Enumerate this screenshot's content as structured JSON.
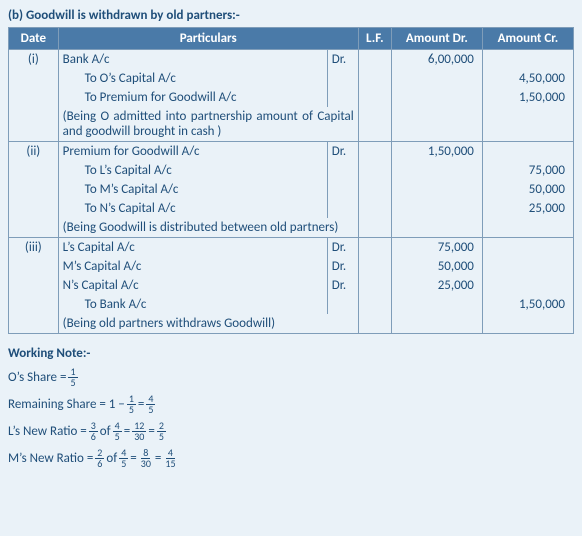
{
  "heading": "(b)  Goodwill is withdrawn by old partners:-",
  "columns": {
    "date": "Date",
    "particulars": "Particulars",
    "lf": "L.F.",
    "amount_dr": "Amount Dr.",
    "amount_cr": "Amount Cr."
  },
  "style": {
    "header_bg": "#4a7aa8",
    "header_fg": "#ffffff",
    "border": "#7f9db9",
    "body_bg": "#eaf2f8",
    "text_color": "#1f4e79",
    "font_size": 13
  },
  "entries": [
    {
      "ref": "(i)",
      "dr_lines": [
        {
          "text": "Bank A/c",
          "dr": "Dr.",
          "amt_dr": "6,00,000"
        }
      ],
      "cr_lines": [
        {
          "text": "To O’s Capital A/c",
          "amt_cr": "4,50,000"
        },
        {
          "text": "To Premium for Goodwill A/c",
          "amt_cr": "1,50,000"
        }
      ],
      "narration": "(Being O admitted into partnership amount of Capital and goodwill brought in cash )"
    },
    {
      "ref": "(ii)",
      "dr_lines": [
        {
          "text": "Premium for Goodwill A/c",
          "dr": "Dr.",
          "amt_dr": "1,50,000"
        }
      ],
      "cr_lines": [
        {
          "text": "To L’s Capital A/c",
          "amt_cr": "75,000"
        },
        {
          "text": "To M’s Capital A/c",
          "amt_cr": "50,000"
        },
        {
          "text": "To N’s Capital A/c",
          "amt_cr": "25,000"
        }
      ],
      "narration": "(Being Goodwill is distributed between old partners)"
    },
    {
      "ref": "(iii)",
      "dr_lines": [
        {
          "text": "L’s Capital A/c",
          "dr": "Dr.",
          "amt_dr": "75,000"
        },
        {
          "text": "M’s Capital A/c",
          "dr": "Dr.",
          "amt_dr": "50,000"
        },
        {
          "text": "N’s Capital A/c",
          "dr": "Dr.",
          "amt_dr": "25,000"
        }
      ],
      "cr_lines": [
        {
          "text": "To Bank A/c",
          "amt_cr": "1,50,000"
        }
      ],
      "narration": "(Being old partners withdraws Goodwill)"
    }
  ],
  "working_note": {
    "title": "Working Note:-",
    "lines": [
      {
        "label": "O’s Share = ",
        "frac": {
          "n": "1",
          "d": "5"
        }
      },
      {
        "label": "Remaining Share = 1 − ",
        "f1": {
          "n": "1",
          "d": "5"
        },
        "eq1": " = ",
        "f2": {
          "n": "4",
          "d": "5"
        }
      },
      {
        "label": "L’s New Ratio = ",
        "f1": {
          "n": "3",
          "d": "6"
        },
        "of": " of ",
        "f2": {
          "n": "4",
          "d": "5"
        },
        "eq1": " = ",
        "f3": {
          "n": "12",
          "d": "30"
        },
        "eq2": " = ",
        "f4": {
          "n": "2",
          "d": "5"
        }
      },
      {
        "label": "M’s New Ratio = ",
        "f1": {
          "n": "2",
          "d": "6"
        },
        "of": " of ",
        "f2": {
          "n": "4",
          "d": "5"
        },
        "eq1": " = ",
        "f3": {
          "n": "8",
          "d": "30"
        },
        "eq2": " = ",
        "f4": {
          "n": "4",
          "d": "15"
        }
      }
    ]
  }
}
